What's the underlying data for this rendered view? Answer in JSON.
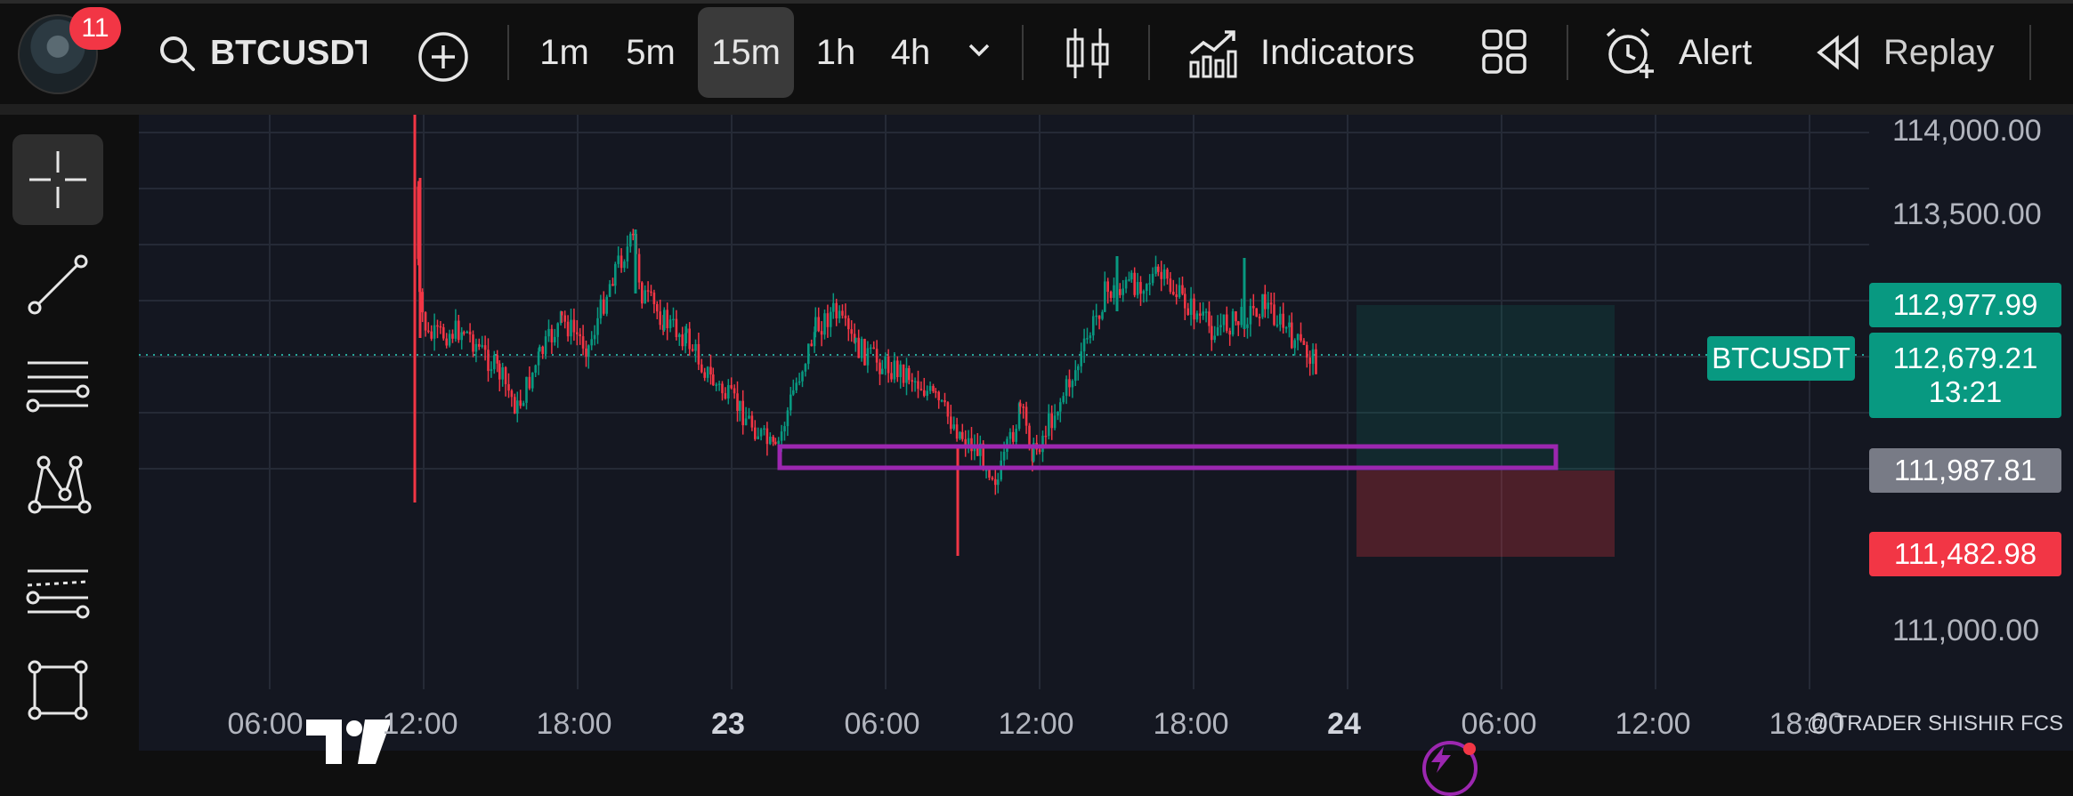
{
  "toolbar": {
    "notification_count": "11",
    "symbol": "BTCUSDT",
    "intervals": [
      "1m",
      "5m",
      "15m",
      "1h",
      "4h"
    ],
    "active_interval": "15m",
    "indicators_label": "Indicators",
    "alert_label": "Alert",
    "replay_label": "Replay"
  },
  "icons": {
    "search": "search-icon",
    "add": "plus-circle-icon",
    "more": "chevron-down-icon",
    "candles": "candlestick-icon",
    "indicators": "chart-indicators-icon",
    "layouts": "grid-layout-icon",
    "alert": "alarm-clock-icon",
    "replay": "rewind-icon"
  },
  "sidebar_tools": [
    "crosshair-icon",
    "trend-line-icon",
    "horizontal-lines-icon",
    "pattern-icon",
    "fib-icon",
    "rectangle-icon"
  ],
  "chart": {
    "symbol_tag": "BTCUSDT",
    "price_axis": [
      "114,000.00",
      "113,500.00",
      "111,000.00"
    ],
    "tags": {
      "target": "112,977.99",
      "current": "112,679.21",
      "countdown": "13:21",
      "entry": "111,987.81",
      "stop": "111,482.98"
    },
    "time_axis": [
      "06:00",
      "12:00",
      "18:00",
      "23",
      "06:00",
      "12:00",
      "18:00",
      "24",
      "06:00",
      "12:00",
      "18:00"
    ],
    "watermark": "@ TRADER SHISHIR FCS",
    "colors": {
      "up": "#089981",
      "down": "#f23645",
      "zone": "#9c27b0",
      "bg": "#141721"
    }
  }
}
